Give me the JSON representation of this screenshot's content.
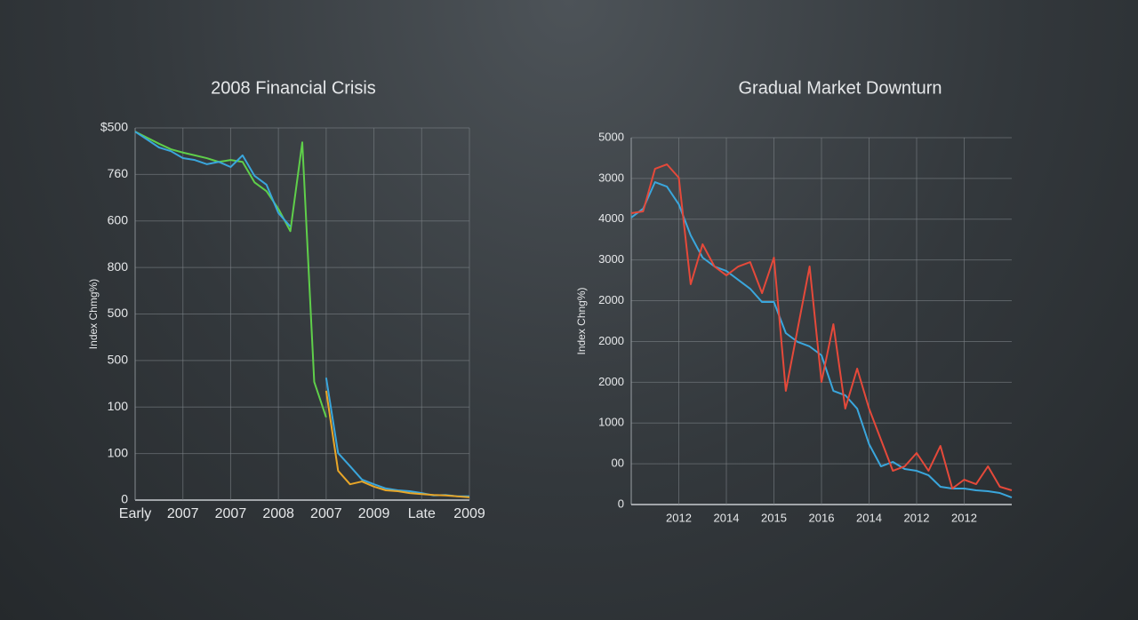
{
  "chart_data": [
    {
      "type": "line",
      "title": "2008 Financial Crisis",
      "y_label": "Index Chmg%)",
      "categories": [
        "Early",
        null,
        null,
        null,
        "2007",
        null,
        null,
        null,
        "2007",
        null,
        null,
        null,
        "2008",
        null,
        null,
        null,
        "2007",
        null,
        null,
        null,
        "2009",
        null,
        null,
        null,
        "Late",
        null,
        null,
        null,
        "2009"
      ],
      "ylim": [
        0,
        800
      ],
      "yticks": [
        0,
        100,
        {
          "value": 200,
          "label": "100"
        },
        {
          "value": 300,
          "label": "500"
        },
        {
          "value": 400,
          "label": "500"
        },
        {
          "value": 500,
          "label": "800"
        },
        {
          "value": 600,
          "label": "600"
        },
        {
          "value": 700,
          "label": "760"
        },
        {
          "value": 800,
          "label": "$500"
        }
      ],
      "grid": true,
      "series": [
        {
          "name": "green",
          "color": "#5fcf4a",
          "values": [
            792,
            779,
            766,
            754,
            747,
            741,
            735,
            727,
            731,
            727,
            683,
            664,
            626,
            578,
            769,
            254,
            178,
            null,
            null,
            null,
            null,
            null,
            null,
            null,
            null,
            null,
            null,
            null,
            null
          ]
        },
        {
          "name": "blue",
          "color": "#3aa6dc",
          "values": [
            792,
            775,
            758,
            750,
            735,
            731,
            722,
            727,
            716,
            741,
            697,
            678,
            617,
            588,
            null,
            null,
            263,
            101,
            73,
            44,
            34,
            25,
            21,
            19,
            15,
            10,
            11,
            8,
            8
          ]
        },
        {
          "name": "orange",
          "color": "#e8a628",
          "values": [
            null,
            null,
            null,
            null,
            null,
            null,
            null,
            null,
            null,
            null,
            null,
            null,
            null,
            null,
            null,
            null,
            235,
            63,
            34,
            40,
            29,
            21,
            19,
            15,
            13,
            11,
            10,
            8,
            6
          ]
        }
      ]
    },
    {
      "type": "line",
      "title": "Gradual Market Downturn",
      "y_label": "Index Chng%)",
      "categories": [
        null,
        null,
        null,
        null,
        "2012",
        null,
        null,
        null,
        "2014",
        null,
        null,
        null,
        "2015",
        null,
        null,
        null,
        "2016",
        null,
        null,
        null,
        "2014",
        null,
        null,
        null,
        "2012",
        null,
        null,
        null,
        "2012",
        null,
        null,
        null,
        null
      ],
      "ylim": [
        0,
        9000
      ],
      "yticks": [
        0,
        {
          "value": 1000,
          "label": "00"
        },
        {
          "value": 2000,
          "label": "1000"
        },
        {
          "value": 3000,
          "label": "2000"
        },
        {
          "value": 4000,
          "label": "2000"
        },
        {
          "value": 5000,
          "label": "2000"
        },
        {
          "value": 6000,
          "label": "3000"
        },
        {
          "value": 7000,
          "label": "4000"
        },
        {
          "value": 8000,
          "label": "3000"
        },
        {
          "value": 9000,
          "label": "5000"
        }
      ],
      "grid": true,
      "series": [
        {
          "name": "blue",
          "color": "#3aa6dc",
          "values": [
            7039,
            7257,
            7910,
            7801,
            7365,
            6603,
            6058,
            5840,
            5731,
            5513,
            5295,
            4968,
            4968,
            4206,
            3988,
            3879,
            3661,
            2789,
            2680,
            2353,
            1482,
            937,
            1046,
            871,
            828,
            719,
            436,
            392,
            392,
            349,
            327,
            283,
            174
          ]
        },
        {
          "name": "red",
          "color": "#e5493a",
          "values": [
            7147,
            7191,
            8237,
            8346,
            8019,
            5404,
            6385,
            5840,
            5622,
            5840,
            5949,
            5186,
            6058,
            2789,
            4315,
            5840,
            3007,
            4424,
            2353,
            3334,
            2353,
            1591,
            828,
            937,
            1264,
            828,
            1438,
            392,
            610,
            501,
            937,
            436,
            349
          ]
        }
      ]
    }
  ]
}
